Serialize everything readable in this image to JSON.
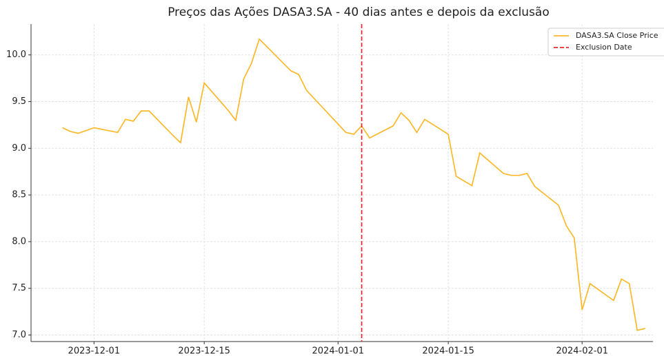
{
  "chart_data": {
    "type": "line",
    "title": "Preços das Ações DASA3.SA - 40 dias antes e depois da exclusão",
    "x": [
      "2023-11-27",
      "2023-11-28",
      "2023-11-29",
      "2023-11-30",
      "2023-12-01",
      "2023-12-04",
      "2023-12-05",
      "2023-12-06",
      "2023-12-07",
      "2023-12-08",
      "2023-12-11",
      "2023-12-12",
      "2023-12-13",
      "2023-12-14",
      "2023-12-15",
      "2023-12-18",
      "2023-12-19",
      "2023-12-20",
      "2023-12-21",
      "2023-12-22",
      "2023-12-26",
      "2023-12-27",
      "2023-12-28",
      "2024-01-02",
      "2024-01-03",
      "2024-01-04",
      "2024-01-05",
      "2024-01-08",
      "2024-01-09",
      "2024-01-10",
      "2024-01-11",
      "2024-01-12",
      "2024-01-15",
      "2024-01-16",
      "2024-01-18",
      "2024-01-19",
      "2024-01-22",
      "2024-01-23",
      "2024-01-24",
      "2024-01-25",
      "2024-01-26",
      "2024-01-29",
      "2024-01-30",
      "2024-01-31",
      "2024-02-01",
      "2024-02-02",
      "2024-02-05",
      "2024-02-06",
      "2024-02-07",
      "2024-02-08",
      "2024-02-09"
    ],
    "series": [
      {
        "name": "DASA3.SA Close Price",
        "color": "#fbb829",
        "values": [
          9.22,
          9.18,
          9.16,
          9.19,
          9.22,
          9.17,
          9.31,
          9.29,
          9.4,
          9.4,
          9.14,
          9.06,
          9.55,
          9.28,
          9.7,
          9.41,
          9.3,
          9.74,
          9.91,
          10.17,
          9.83,
          9.79,
          9.62,
          9.17,
          9.15,
          9.24,
          9.11,
          9.24,
          9.38,
          9.3,
          9.17,
          9.31,
          9.15,
          8.7,
          8.6,
          8.95,
          8.73,
          8.71,
          8.71,
          8.73,
          8.59,
          8.39,
          8.17,
          8.04,
          7.27,
          7.55,
          7.37,
          7.6,
          7.55,
          7.05,
          7.07
        ]
      }
    ],
    "vline": {
      "name": "Exclusion Date",
      "x": "2024-01-04",
      "color": "#e8272a"
    },
    "xlim": [
      "2023-11-23",
      "2024-02-10"
    ],
    "ylim": [
      6.93,
      10.33
    ],
    "xticks": [
      "2023-12-01",
      "2023-12-15",
      "2024-01-01",
      "2024-01-15",
      "2024-02-01"
    ],
    "yticks": [
      {
        "value": 7,
        "label": "7.0"
      },
      7.5,
      {
        "value": 8,
        "label": "8.0"
      },
      8.5,
      {
        "value": 9,
        "label": "9.0"
      },
      9.5,
      {
        "value": 10,
        "label": "10.0"
      }
    ],
    "grid": true,
    "legend": "upper right"
  }
}
